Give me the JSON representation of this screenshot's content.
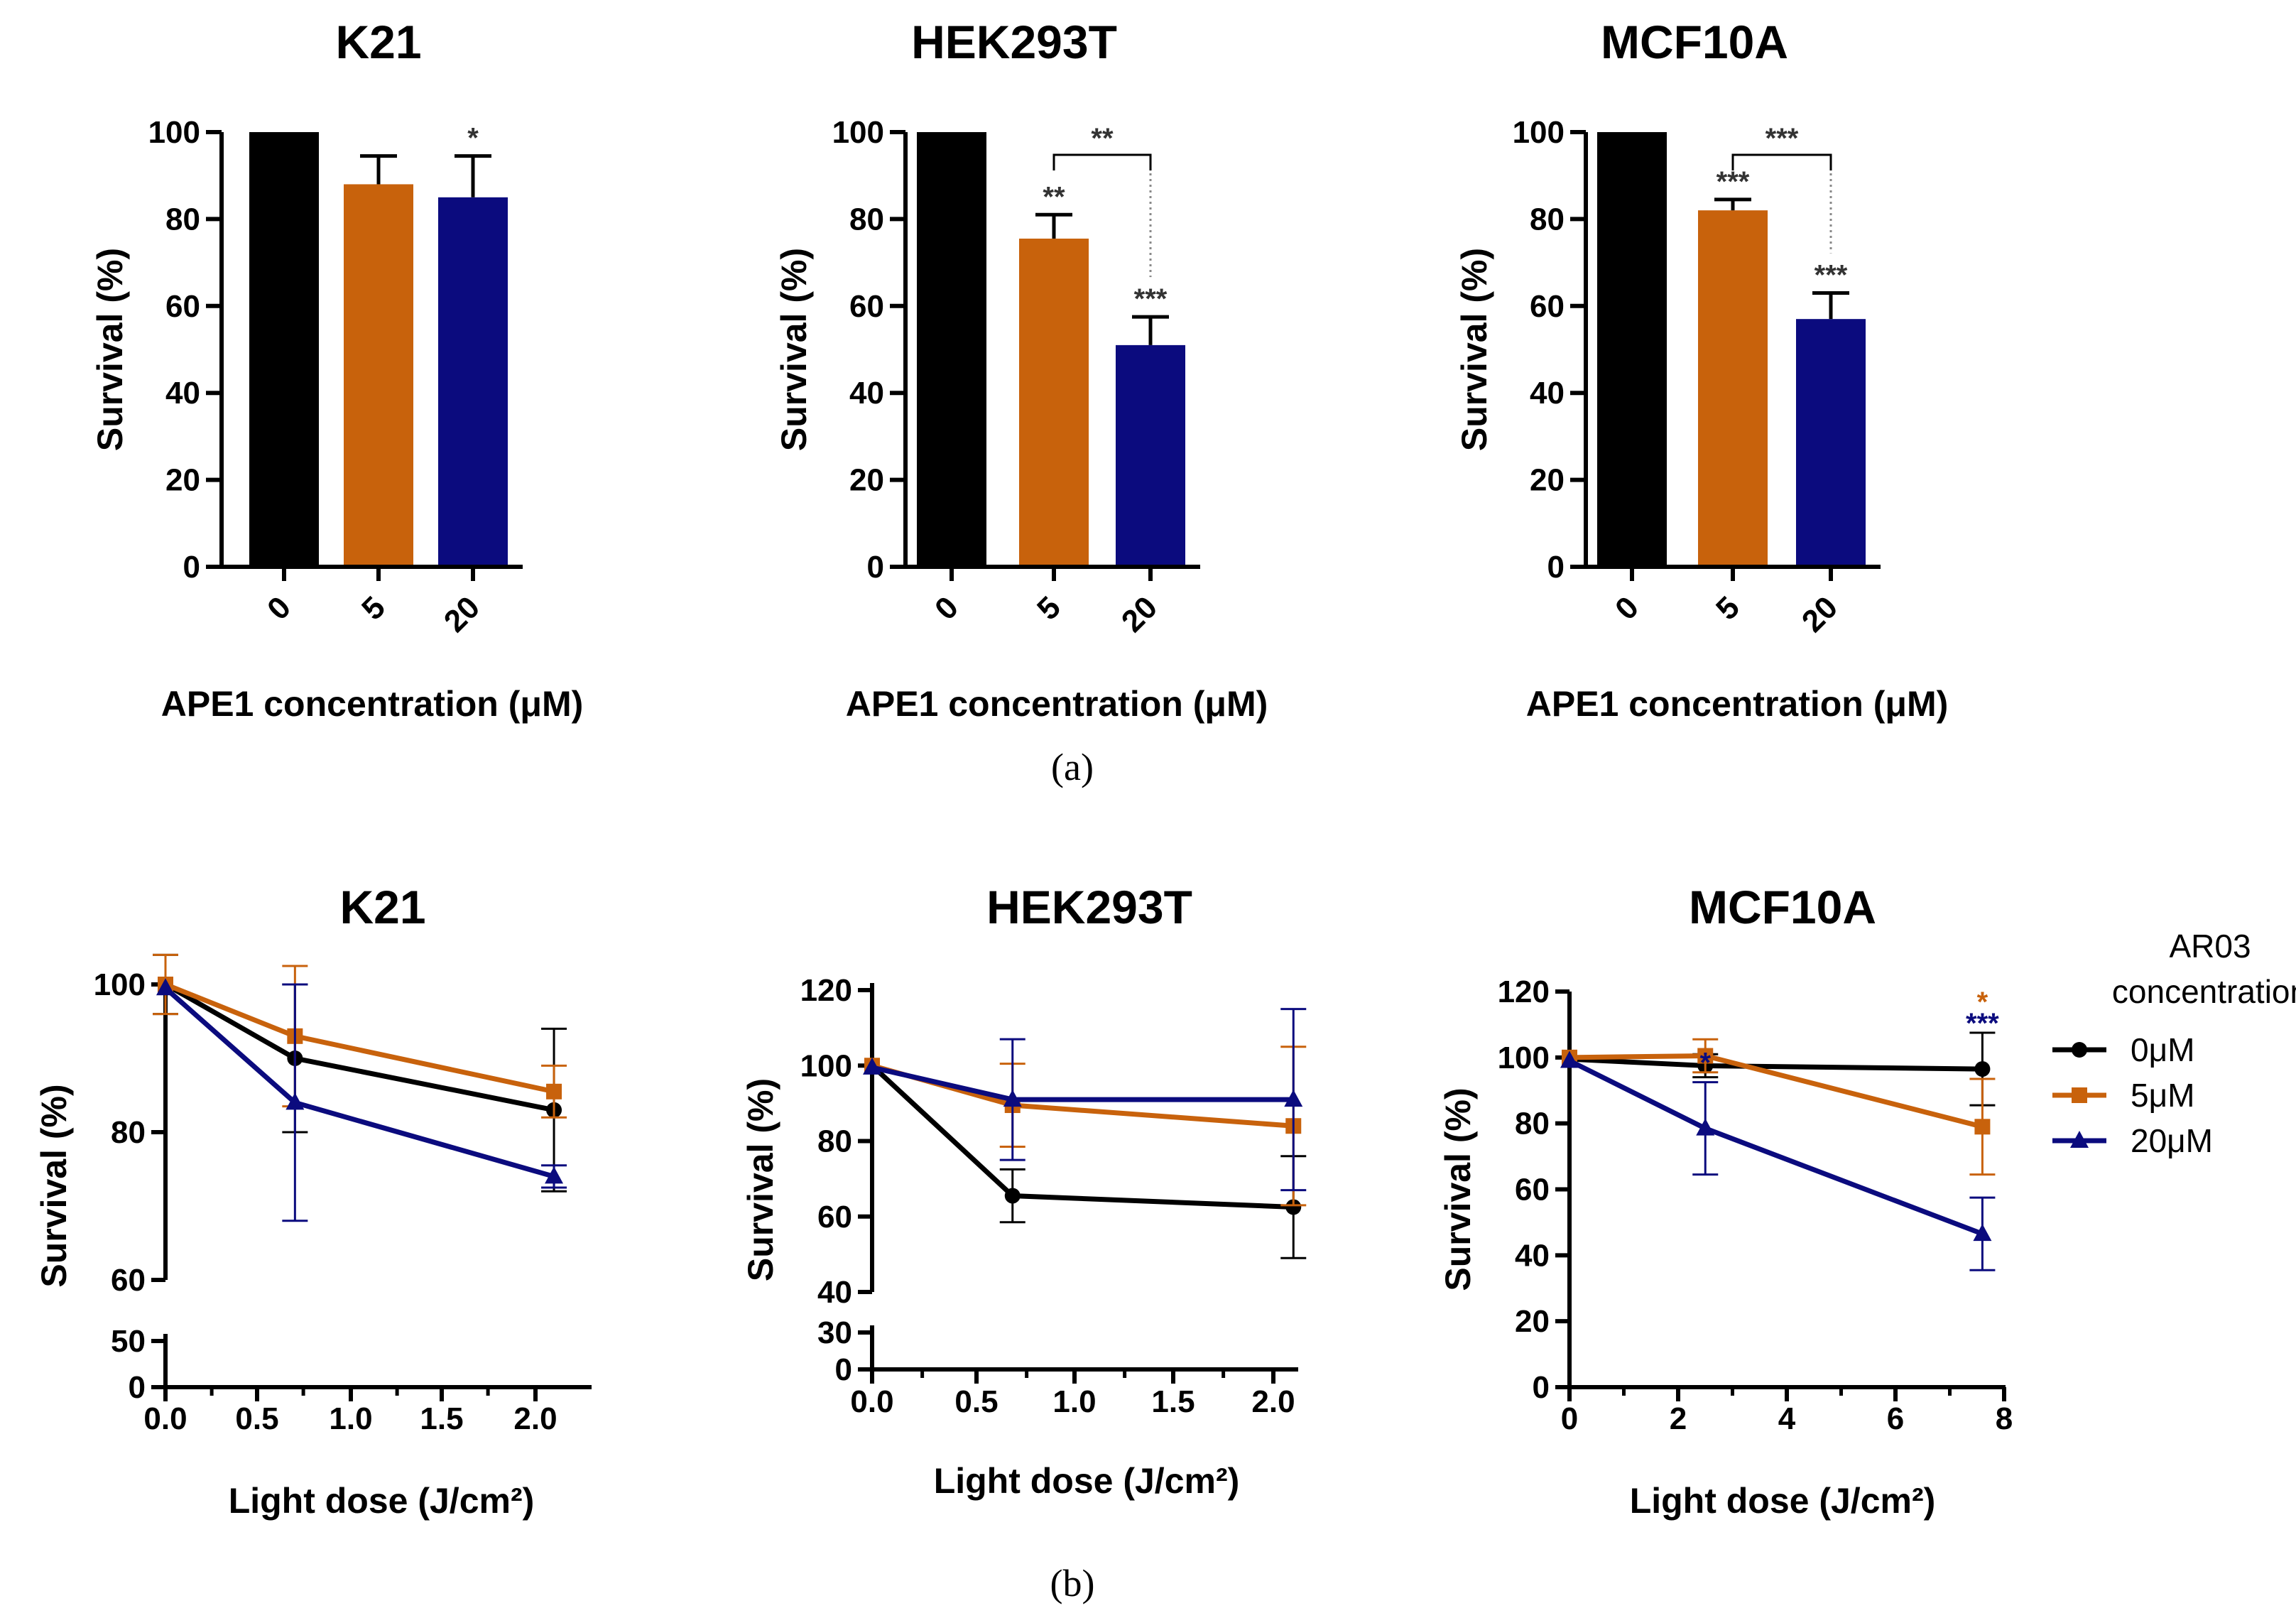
{
  "panel_labels": [
    "(a)",
    "(b)"
  ],
  "colors": {
    "c0": "#000000",
    "c5": "#c8620c",
    "c20": "#0b0b7e"
  },
  "legend": {
    "title_line1": "AR03",
    "title_line2": "concentration",
    "items": [
      "0μM",
      "5μM",
      "20μM"
    ]
  },
  "chart_data": [
    {
      "type": "bar",
      "title": "K21",
      "categories": [
        "0",
        "5",
        "20"
      ],
      "values": [
        100,
        88,
        85
      ],
      "errors": [
        0,
        6.5,
        9.5
      ],
      "xlabel": "APE1 concentration (μM)",
      "ylabel": "Survival (%)",
      "ylim": [
        0,
        100
      ],
      "yticks": [
        "0",
        "20",
        "40",
        "60",
        "80",
        "100"
      ],
      "annotations": [
        {
          "cat": 2,
          "text": "*"
        }
      ],
      "brackets": []
    },
    {
      "type": "bar",
      "title": "HEK293T",
      "categories": [
        "0",
        "5",
        "20"
      ],
      "values": [
        100,
        75.5,
        51
      ],
      "errors": [
        0,
        5.5,
        6.5
      ],
      "xlabel": "APE1 concentration (μM)",
      "ylabel": "Survival (%)",
      "ylim": [
        0,
        100
      ],
      "yticks": [
        "0",
        "20",
        "40",
        "60",
        "80",
        "100"
      ],
      "annotations": [
        {
          "cat": 1,
          "text": "**"
        },
        {
          "cat": 2,
          "text": "***"
        }
      ],
      "brackets": [
        {
          "from": 1,
          "to": 2,
          "text": "**"
        }
      ]
    },
    {
      "type": "bar",
      "title": "MCF10A",
      "categories": [
        "0",
        "5",
        "20"
      ],
      "values": [
        100,
        82,
        57
      ],
      "errors": [
        0,
        2.5,
        6
      ],
      "xlabel": "APE1 concentration (μM)",
      "ylabel": "Survival (%)",
      "ylim": [
        0,
        100
      ],
      "yticks": [
        "0",
        "20",
        "40",
        "60",
        "80",
        "100"
      ],
      "annotations": [
        {
          "cat": 1,
          "text": "***"
        },
        {
          "cat": 2,
          "text": "***"
        }
      ],
      "brackets": [
        {
          "from": 1,
          "to": 2,
          "text": "***"
        }
      ]
    },
    {
      "type": "line",
      "title": "K21",
      "x": [
        0,
        0.7,
        2.1
      ],
      "series": [
        {
          "name": "0μM",
          "values": [
            100,
            90,
            83
          ],
          "errors": [
            4,
            10,
            11
          ]
        },
        {
          "name": "5μM",
          "values": [
            100,
            93,
            85.5
          ],
          "errors": [
            4,
            9.5,
            3.5
          ]
        },
        {
          "name": "20μM",
          "values": [
            99.5,
            84,
            74
          ],
          "errors": [
            0,
            16,
            1.5
          ]
        }
      ],
      "xlabel": "Light dose (J/cm²)",
      "ylabel": "Survival (%)",
      "xlim": [
        0,
        2.2
      ],
      "xticks": [
        "0.0",
        "0.5",
        "1.0",
        "1.5",
        "2.0"
      ],
      "ylim": [
        0,
        100
      ],
      "ybreak": [
        50,
        60
      ],
      "yticks_lower": [
        "0",
        "50"
      ],
      "yticks_upper": [
        "60",
        "80",
        "100"
      ],
      "stars": []
    },
    {
      "type": "line",
      "title": "HEK293T",
      "x": [
        0,
        0.7,
        2.1
      ],
      "series": [
        {
          "name": "0μM",
          "values": [
            100,
            65.5,
            62.5
          ],
          "errors": [
            0,
            7,
            13.5
          ]
        },
        {
          "name": "5μM",
          "values": [
            100,
            89.5,
            84
          ],
          "errors": [
            0,
            11,
            21
          ]
        },
        {
          "name": "20μM",
          "values": [
            99.5,
            91,
            91
          ],
          "errors": [
            0,
            16,
            24
          ]
        }
      ],
      "xlabel": "Light dose (J/cm²)",
      "ylabel": "Survival (%)",
      "xlim": [
        0,
        2.2
      ],
      "xticks": [
        "0.0",
        "0.5",
        "1.0",
        "1.5",
        "2.0"
      ],
      "ylim": [
        0,
        120
      ],
      "ybreak": [
        30,
        40
      ],
      "yticks_lower": [
        "0",
        "30"
      ],
      "yticks_upper": [
        "40",
        "60",
        "80",
        "100",
        "120"
      ],
      "stars": []
    },
    {
      "type": "line",
      "title": "MCF10A",
      "x": [
        0,
        2.5,
        7.6
      ],
      "series": [
        {
          "name": "0μM",
          "values": [
            99.5,
            97.5,
            96.5
          ],
          "errors": [
            0,
            3.5,
            11
          ]
        },
        {
          "name": "5μM",
          "values": [
            100,
            100.5,
            79
          ],
          "errors": [
            0,
            5,
            14.5
          ]
        },
        {
          "name": "20μM",
          "values": [
            99,
            78.5,
            46.5
          ],
          "errors": [
            0,
            14,
            11
          ]
        }
      ],
      "xlabel": "Light dose (J/cm²)",
      "ylabel": "Survival (%)",
      "xlim": [
        0,
        8
      ],
      "xticks": [
        "0",
        "2",
        "4",
        "6",
        "8"
      ],
      "ylim": [
        0,
        120
      ],
      "ybreak": null,
      "yticks": [
        "0",
        "20",
        "40",
        "60",
        "80",
        "100",
        "120"
      ],
      "stars": [
        {
          "x": 2.5,
          "series": 2,
          "text": "*"
        },
        {
          "x": 7.6,
          "series": 1,
          "text": "*"
        },
        {
          "x": 7.6,
          "series": 2,
          "text": "***"
        }
      ]
    }
  ]
}
